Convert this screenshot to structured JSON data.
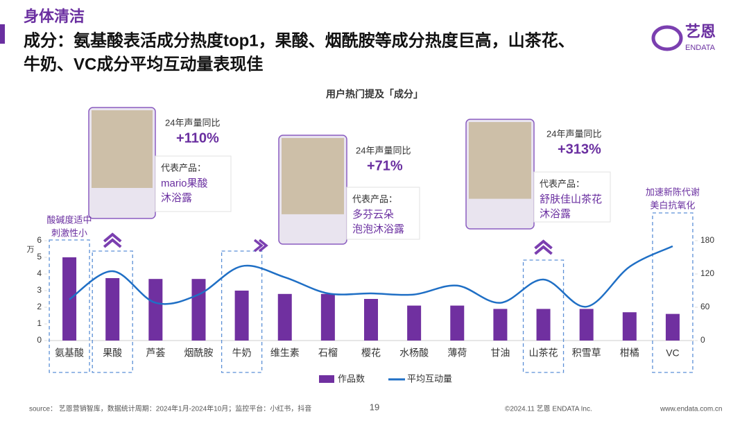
{
  "header": {
    "section": "身体清洁",
    "title_lines": [
      "成分：氨基酸表活成分热度top1，果酸、烟酰胺等成分热度巨高，山茶花、",
      "牛奶、VC成分平均互动量表现佳"
    ],
    "logo": "艺恩",
    "logo_sub": "ENDATA"
  },
  "chart_data": {
    "type": "combo",
    "title": "用户热门提及「成分」",
    "y_label": "万",
    "categories": [
      "氨基酸",
      "果酸",
      "芦荟",
      "烟酰胺",
      "牛奶",
      "维生素",
      "石榴",
      "樱花",
      "水杨酸",
      "薄荷",
      "甘油",
      "山茶花",
      "积雪草",
      "柑橘",
      "VC"
    ],
    "series": [
      {
        "name": "作品数",
        "type": "bar",
        "color": "#7030a0",
        "values": [
          5.0,
          3.75,
          3.7,
          3.7,
          3.0,
          2.8,
          2.8,
          2.5,
          2.1,
          2.1,
          1.9,
          1.9,
          1.9,
          1.7,
          1.6
        ]
      },
      {
        "name": "平均互动量",
        "type": "line",
        "axis": "y2",
        "color": "#1f6fc5",
        "values": [
          74,
          125,
          68,
          83,
          134,
          114,
          85,
          85,
          83,
          99,
          68,
          110,
          61,
          133,
          170
        ]
      }
    ],
    "ylim": [
      0,
      6
    ],
    "yticks": [
      0,
      1,
      2,
      3,
      4,
      5,
      6
    ],
    "y2lim": [
      0,
      180
    ],
    "y2ticks": [
      0,
      60,
      120,
      180
    ],
    "legend": "bottom",
    "annotations": [
      {
        "lines": [
          "酸碱度适中",
          "刺激性小"
        ]
      },
      {
        "lines": [
          "加速新陈代谢",
          "美白抗氧化"
        ]
      }
    ]
  },
  "callouts": [
    {
      "growth_label": "24年声量同比",
      "growth": "+110%",
      "product_label": "代表产品：",
      "product_lines": [
        "mario果酸",
        "沐浴露"
      ]
    },
    {
      "growth_label": "24年声量同比",
      "growth": "+71%",
      "product_label": "代表产品：",
      "product_lines": [
        "多芬云朵",
        "泡泡沐浴露"
      ]
    },
    {
      "growth_label": "24年声量同比",
      "growth": "+313%",
      "product_label": "代表产品：",
      "product_lines": [
        "舒肤佳山茶花",
        "沐浴露"
      ]
    }
  ],
  "footer": {
    "source": "source： 艺恩营销智库，数据统计周期：2024年1月-2024年10月；监控平台：小红书，抖音",
    "page": "19",
    "copyright": "©2024.11  艺恩 ENDATA Inc.",
    "url": "www.endata.com.cn"
  }
}
